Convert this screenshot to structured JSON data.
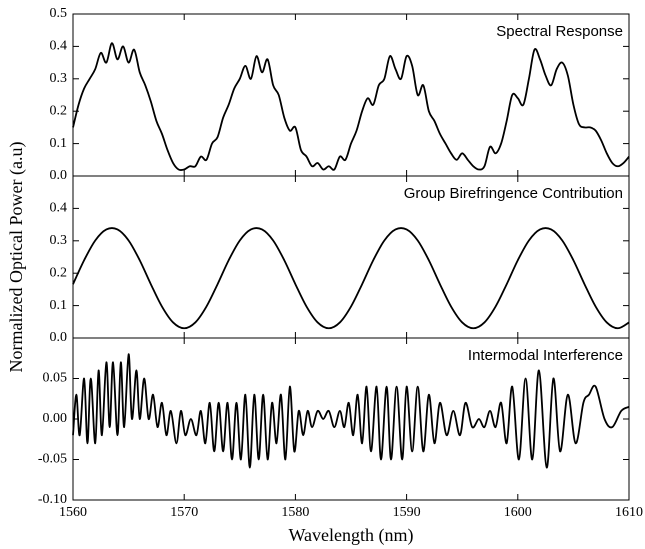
{
  "chart_data": [
    {
      "type": "line",
      "title": "Spectral Response",
      "xlim": [
        1560,
        1610
      ],
      "ylim": [
        0,
        0.5
      ],
      "yticks": [
        {
          "value": 0,
          "label": "0.0"
        },
        0.1,
        0.2,
        0.3,
        0.4,
        0.5
      ],
      "x": [
        1560,
        1560.5,
        1561,
        1561.5,
        1562,
        1562.5,
        1563,
        1563.5,
        1564,
        1564.5,
        1565,
        1565.5,
        1566,
        1566.5,
        1567,
        1567.5,
        1568,
        1568.5,
        1569,
        1569.5,
        1570,
        1570.5,
        1571,
        1571.5,
        1572,
        1572.5,
        1573,
        1573.5,
        1574,
        1574.5,
        1575,
        1575.5,
        1576,
        1576.5,
        1577,
        1577.5,
        1578,
        1578.5,
        1579,
        1579.5,
        1580,
        1580.5,
        1581,
        1581.5,
        1582,
        1582.5,
        1583,
        1583.5,
        1584,
        1584.5,
        1585,
        1585.5,
        1586,
        1586.5,
        1587,
        1587.5,
        1588,
        1588.5,
        1589,
        1589.5,
        1590,
        1590.5,
        1591,
        1591.5,
        1592,
        1592.5,
        1593,
        1593.5,
        1594,
        1594.5,
        1595,
        1595.5,
        1596,
        1596.5,
        1597,
        1597.5,
        1598,
        1598.5,
        1599,
        1599.5,
        1600,
        1600.5,
        1601,
        1601.5,
        1602,
        1602.5,
        1603,
        1603.5,
        1604,
        1604.5,
        1605,
        1605.5,
        1606,
        1606.5,
        1607,
        1607.5,
        1608,
        1608.5,
        1609,
        1609.5,
        1610
      ],
      "series": [
        {
          "color": "#000000",
          "values": [
            0.15,
            0.22,
            0.27,
            0.3,
            0.33,
            0.38,
            0.35,
            0.41,
            0.36,
            0.4,
            0.35,
            0.39,
            0.32,
            0.28,
            0.23,
            0.17,
            0.13,
            0.08,
            0.04,
            0.02,
            0.02,
            0.03,
            0.03,
            0.06,
            0.05,
            0.1,
            0.12,
            0.18,
            0.22,
            0.27,
            0.3,
            0.34,
            0.3,
            0.37,
            0.32,
            0.36,
            0.28,
            0.25,
            0.18,
            0.14,
            0.15,
            0.08,
            0.06,
            0.03,
            0.04,
            0.02,
            0.03,
            0.02,
            0.06,
            0.05,
            0.1,
            0.14,
            0.2,
            0.24,
            0.22,
            0.28,
            0.3,
            0.37,
            0.33,
            0.3,
            0.37,
            0.34,
            0.25,
            0.28,
            0.2,
            0.17,
            0.13,
            0.1,
            0.07,
            0.05,
            0.07,
            0.05,
            0.03,
            0.02,
            0.03,
            0.09,
            0.07,
            0.1,
            0.17,
            0.25,
            0.24,
            0.22,
            0.3,
            0.39,
            0.36,
            0.31,
            0.28,
            0.33,
            0.35,
            0.31,
            0.22,
            0.16,
            0.15,
            0.15,
            0.14,
            0.11,
            0.07,
            0.04,
            0.03,
            0.04,
            0.06
          ]
        }
      ]
    },
    {
      "type": "line",
      "title": "Group Birefringence Contribution",
      "ylabel": "Normalized Optical Power (a.u)",
      "xlim": [
        1560,
        1610
      ],
      "ylim": [
        0,
        0.5
      ],
      "yticks": [
        {
          "value": 0,
          "label": "0.0"
        },
        0.1,
        0.2,
        0.3,
        0.4
      ],
      "x": [
        1560,
        1561,
        1562,
        1563,
        1564,
        1565,
        1566,
        1567,
        1568,
        1569,
        1570,
        1571,
        1572,
        1573,
        1574,
        1575,
        1576,
        1577,
        1578,
        1579,
        1580,
        1581,
        1582,
        1583,
        1584,
        1585,
        1586,
        1587,
        1588,
        1589,
        1590,
        1591,
        1592,
        1593,
        1594,
        1595,
        1596,
        1597,
        1598,
        1599,
        1600,
        1601,
        1602,
        1603,
        1604,
        1605,
        1606,
        1607,
        1608,
        1609,
        1610
      ],
      "series": [
        {
          "color": "#000000",
          "values": [
            0.166,
            0.24,
            0.301,
            0.335,
            0.335,
            0.301,
            0.24,
            0.166,
            0.097,
            0.048,
            0.03,
            0.048,
            0.097,
            0.166,
            0.24,
            0.301,
            0.335,
            0.335,
            0.301,
            0.24,
            0.166,
            0.097,
            0.048,
            0.03,
            0.048,
            0.097,
            0.166,
            0.24,
            0.301,
            0.335,
            0.335,
            0.301,
            0.24,
            0.166,
            0.097,
            0.048,
            0.03,
            0.048,
            0.097,
            0.166,
            0.24,
            0.301,
            0.335,
            0.335,
            0.301,
            0.24,
            0.166,
            0.097,
            0.048,
            0.03,
            0.048
          ]
        }
      ]
    },
    {
      "type": "line",
      "title": "Intermodal Interference",
      "xlabel": "Wavelength (nm)",
      "xlim": [
        1560,
        1610
      ],
      "ylim": [
        -0.1,
        0.1
      ],
      "xticks": [
        1560,
        1570,
        1580,
        1590,
        1600,
        1610
      ],
      "yticks": [
        {
          "value": -0.1,
          "label": "-0.10"
        },
        -0.05,
        {
          "value": 0,
          "label": "0.00"
        },
        0.05
      ],
      "x": [
        1560,
        1560.3,
        1560.6,
        1561,
        1561.3,
        1561.6,
        1562,
        1562.3,
        1562.6,
        1563,
        1563.3,
        1563.6,
        1564,
        1564.3,
        1564.6,
        1565,
        1565.3,
        1565.7,
        1566,
        1566.4,
        1566.8,
        1567.2,
        1567.6,
        1568,
        1568.4,
        1568.8,
        1569.3,
        1569.7,
        1570.1,
        1570.6,
        1571.1,
        1571.5,
        1571.9,
        1572.3,
        1572.7,
        1573.1,
        1573.5,
        1573.9,
        1574.3,
        1574.7,
        1575.1,
        1575.5,
        1575.9,
        1576.3,
        1576.7,
        1577.1,
        1577.5,
        1577.9,
        1578.3,
        1578.7,
        1579.1,
        1579.5,
        1579.9,
        1580.3,
        1580.7,
        1581.1,
        1581.5,
        1582,
        1582.5,
        1583,
        1583.5,
        1584,
        1584.4,
        1584.8,
        1585.2,
        1585.6,
        1586,
        1586.4,
        1586.8,
        1587.3,
        1587.7,
        1588.2,
        1588.6,
        1589.1,
        1589.6,
        1590,
        1590.5,
        1591,
        1591.5,
        1592,
        1592.5,
        1593,
        1593.6,
        1594.2,
        1594.8,
        1595.3,
        1595.9,
        1596.5,
        1597,
        1597.5,
        1598,
        1598.5,
        1599,
        1599.5,
        1600.1,
        1600.7,
        1601.3,
        1601.9,
        1602.6,
        1603.2,
        1603.8,
        1604.5,
        1605.2,
        1605.9,
        1606.4,
        1607,
        1607.8,
        1608.5,
        1609.3,
        1610
      ],
      "series": [
        {
          "color": "#000000",
          "values": [
            -0.02,
            0.03,
            -0.02,
            0.05,
            -0.03,
            0.05,
            -0.03,
            0.06,
            -0.02,
            0.07,
            -0.01,
            0.07,
            -0.02,
            0.07,
            -0.01,
            0.08,
            0.0,
            0.06,
            0.0,
            0.05,
            0.0,
            0.03,
            -0.01,
            0.02,
            -0.02,
            0.01,
            -0.03,
            0.01,
            -0.02,
            0.0,
            -0.02,
            0.01,
            -0.03,
            0.02,
            -0.04,
            0.02,
            -0.04,
            0.02,
            -0.05,
            0.02,
            -0.05,
            0.03,
            -0.06,
            0.03,
            -0.05,
            0.03,
            -0.05,
            0.02,
            -0.03,
            0.03,
            -0.05,
            0.04,
            -0.04,
            0.01,
            -0.02,
            0.01,
            -0.01,
            0.01,
            0.0,
            0.01,
            -0.01,
            0.01,
            -0.01,
            0.02,
            -0.02,
            0.03,
            -0.03,
            0.04,
            -0.04,
            0.04,
            -0.05,
            0.04,
            -0.05,
            0.04,
            -0.05,
            0.04,
            -0.04,
            0.04,
            -0.04,
            0.03,
            -0.03,
            0.02,
            -0.02,
            0.01,
            -0.02,
            0.02,
            -0.01,
            0.0,
            -0.01,
            0.01,
            -0.01,
            0.02,
            -0.03,
            0.04,
            -0.05,
            0.05,
            -0.05,
            0.06,
            -0.06,
            0.05,
            -0.04,
            0.03,
            -0.03,
            0.02,
            0.03,
            0.04,
            0.0,
            -0.01,
            0.01,
            0.015
          ]
        }
      ]
    }
  ]
}
